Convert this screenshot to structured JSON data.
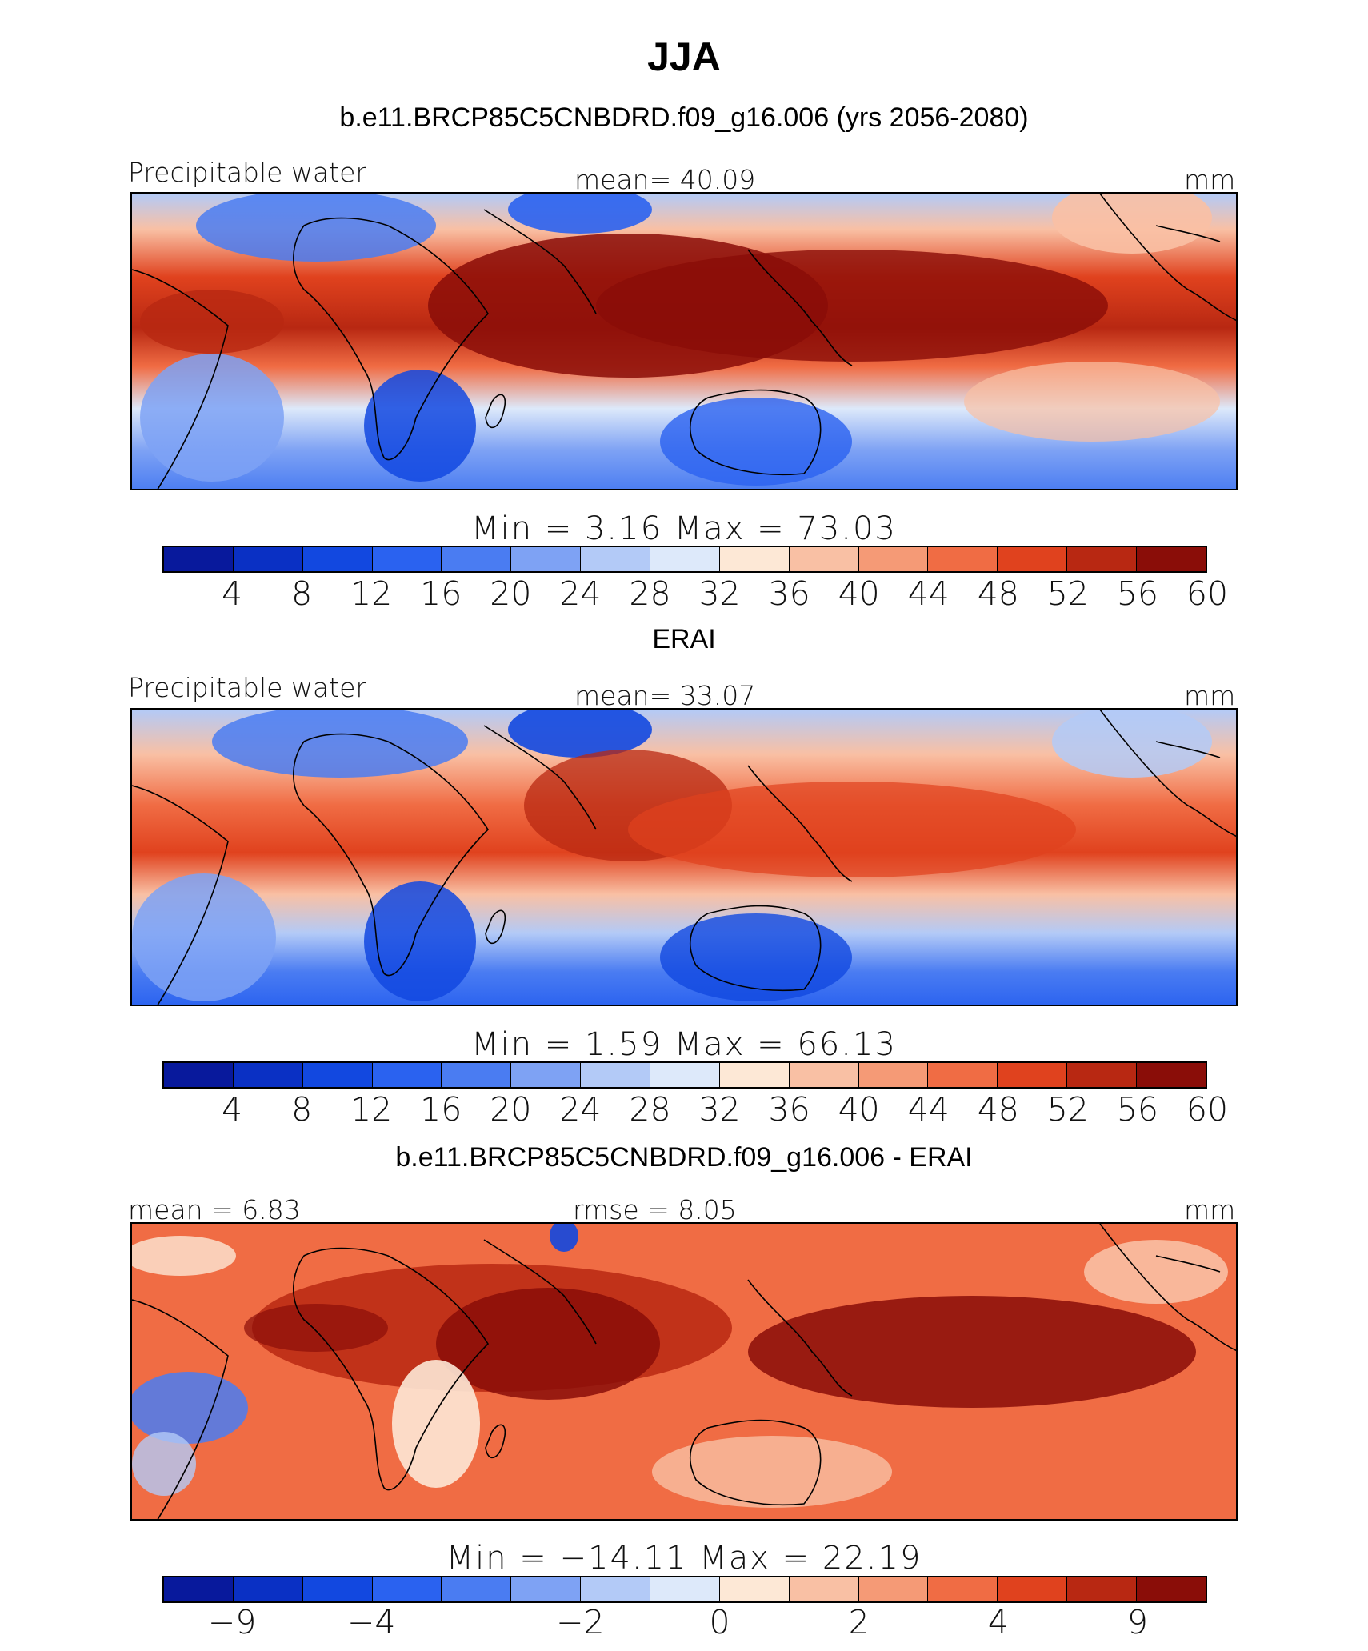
{
  "title": "JJA",
  "colorbar_colors": [
    "#08199c",
    "#0a30c4",
    "#1248e0",
    "#2a62f0",
    "#4a7cf2",
    "#7ea2f4",
    "#b3caf7",
    "#dde9fa",
    "#fde8d6",
    "#f9c0a4",
    "#f59a76",
    "#f06c44",
    "#e0421e",
    "#b82812",
    "#8a0d08"
  ],
  "panels": [
    {
      "title": "b.e11.BRCP85C5CNBDRD.f09_g16.006 (yrs 2056-2080)",
      "left_label": "Precipitable water",
      "center_label": "mean=   40.09",
      "units": "mm",
      "min_max": "Min  =     3.16  Max  =    73.03",
      "tick_labels": [
        "4",
        "8",
        "12",
        "16",
        "20",
        "24",
        "28",
        "32",
        "36",
        "40",
        "44",
        "48",
        "52",
        "56",
        "60"
      ],
      "map_description_key": "model"
    },
    {
      "title": "ERAI",
      "left_label": "Precipitable water",
      "center_label": "mean=   33.07",
      "units": "mm",
      "min_max": "Min  =     1.59  Max  =    66.13",
      "tick_labels": [
        "4",
        "8",
        "12",
        "16",
        "20",
        "24",
        "28",
        "32",
        "36",
        "40",
        "44",
        "48",
        "52",
        "56",
        "60"
      ],
      "map_description_key": "obs"
    },
    {
      "title": "b.e11.BRCP85C5CNBDRD.f09_g16.006 - ERAI",
      "left_label": "mean =    6.83",
      "center_label": "rmse =    8.05",
      "units": "mm",
      "min_max": "Min  = −14.11  Max  =    22.19",
      "tick_labels": [
        "−9",
        "−4",
        "−2",
        "0",
        "2",
        "4",
        "9"
      ],
      "map_description_key": "diff"
    }
  ]
}
